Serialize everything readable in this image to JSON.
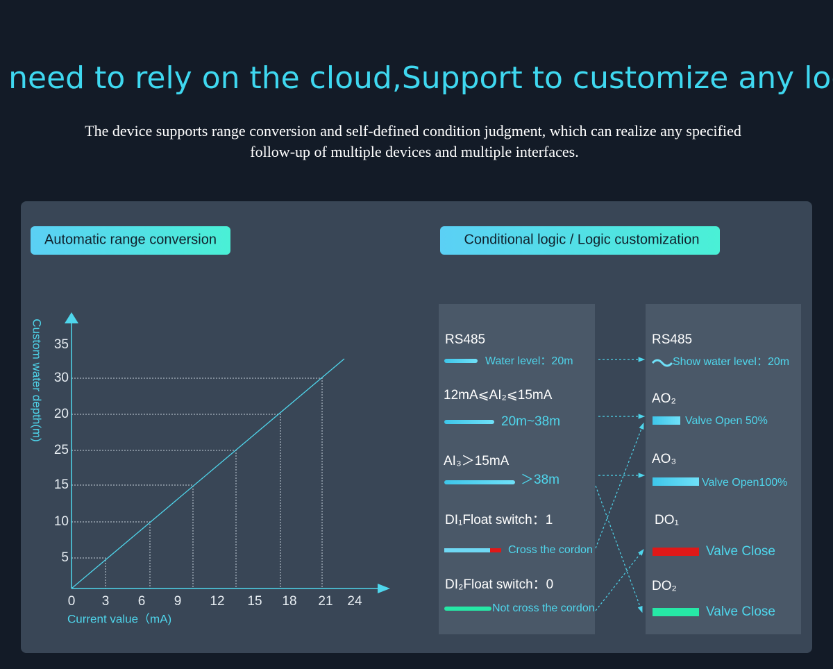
{
  "header": {
    "title": "No need to rely on the cloud,Support to customize any logic",
    "subtitle": [
      "The device supports range conversion and self-defined condition judgment, which can realize any specified",
      "follow-up of multiple devices and multiple interfaces."
    ]
  },
  "left": {
    "tag": "Automatic range conversion",
    "y_axis_title": "Custom water depth(m)",
    "x_axis_title": "Current value（mA)",
    "y_labels": [
      "35",
      "30",
      "20",
      "25",
      "15",
      "10",
      "5"
    ],
    "x_labels": [
      "0",
      "3",
      "6",
      "9",
      "12",
      "15",
      "18",
      "21",
      "24"
    ]
  },
  "right": {
    "tag": "Conditional logic / Logic customization",
    "inputs": [
      {
        "name": "RS485",
        "text": "Water level：20m"
      },
      {
        "name": "12mA⩽AI₂⩽15mA",
        "text": "20m~38m"
      },
      {
        "name": "AI₃＞15mA",
        "text": "＞38m"
      },
      {
        "name": "DI₁Float switch：1",
        "text": "Cross the cordon"
      },
      {
        "name": "DI₂Float switch：0",
        "text": "Not cross the cordon"
      }
    ],
    "outputs": [
      {
        "name": "RS485",
        "text": "Show water level：20m"
      },
      {
        "name": "AO₂",
        "text": "Valve Open 50%"
      },
      {
        "name": "AO₃",
        "text": "Valve Open100%"
      },
      {
        "name": "DO₁",
        "text": "Valve Close"
      },
      {
        "name": "DO₂",
        "text": "Valve Close"
      }
    ]
  }
}
